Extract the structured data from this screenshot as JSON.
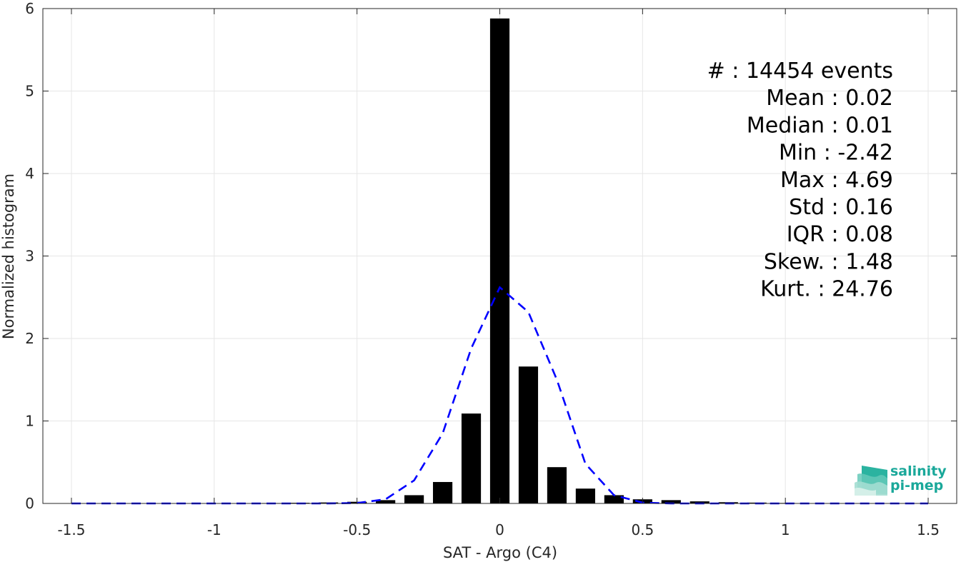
{
  "chart_data": {
    "type": "bar",
    "xlabel": "SAT - Argo (C4)",
    "ylabel": "Normalized histogram",
    "xlim": [
      -1.6,
      1.6
    ],
    "ylim": [
      0,
      6
    ],
    "x_ticks": [
      -1.5,
      -1,
      -0.5,
      0,
      0.5,
      1,
      1.5
    ],
    "x_tick_labels": [
      "-1.5",
      "-1",
      "-0.5",
      "0",
      "0.5",
      "1",
      "1.5"
    ],
    "y_ticks": [
      0,
      1,
      2,
      3,
      4,
      5,
      6
    ],
    "y_tick_labels": [
      "0",
      "1",
      "2",
      "3",
      "4",
      "5",
      "6"
    ],
    "grid": true,
    "bar_color": "#000000",
    "curve_color": "#0000ff",
    "bars": {
      "x": [
        -1.5,
        -1.4,
        -1.3,
        -1.2,
        -1.1,
        -1.0,
        -0.9,
        -0.8,
        -0.7,
        -0.6,
        -0.5,
        -0.4,
        -0.3,
        -0.2,
        -0.1,
        0.0,
        0.1,
        0.2,
        0.3,
        0.4,
        0.5,
        0.6,
        0.7,
        0.8,
        0.9,
        1.0,
        1.1,
        1.2,
        1.3,
        1.4,
        1.5
      ],
      "values": [
        0.002,
        0.002,
        0.002,
        0.002,
        0.002,
        0.003,
        0.004,
        0.005,
        0.008,
        0.012,
        0.02,
        0.04,
        0.1,
        0.26,
        1.09,
        5.88,
        1.66,
        0.44,
        0.18,
        0.1,
        0.05,
        0.04,
        0.025,
        0.015,
        0.01,
        0.006,
        0.004,
        0.003,
        0.002,
        0.002,
        0.002
      ]
    },
    "fit_curve": {
      "style": "dashed",
      "x": [
        -1.5,
        -1.4,
        -1.3,
        -1.2,
        -1.1,
        -1.0,
        -0.9,
        -0.8,
        -0.7,
        -0.6,
        -0.5,
        -0.4,
        -0.3,
        -0.2,
        -0.1,
        0.0,
        0.1,
        0.2,
        0.3,
        0.4,
        0.5,
        0.6,
        0.7,
        0.8,
        0.9,
        1.0,
        1.1,
        1.2,
        1.3,
        1.4,
        1.5
      ],
      "y": [
        0,
        0,
        0,
        0,
        0,
        0,
        0,
        0,
        0,
        0,
        0.005,
        0.05,
        0.28,
        0.85,
        1.88,
        2.62,
        2.32,
        1.5,
        0.48,
        0.1,
        0.01,
        0,
        0,
        0,
        0,
        0,
        0,
        0,
        0,
        0,
        0
      ]
    },
    "stats": [
      {
        "label": "#  : 14454 events"
      },
      {
        "label": "Mean : 0.02"
      },
      {
        "label": "Median : 0.01"
      },
      {
        "label": "Min : -2.42"
      },
      {
        "label": "Max : 4.69"
      },
      {
        "label": "Std : 0.16"
      },
      {
        "label": "IQR : 0.08"
      },
      {
        "label": "Skew. : 1.48"
      },
      {
        "label": "Kurt. : 24.76"
      }
    ]
  },
  "logo": {
    "line1": "salinity",
    "line2": "pi-mep",
    "icon": "salinity-waves-icon",
    "color": "#1aa89a"
  }
}
